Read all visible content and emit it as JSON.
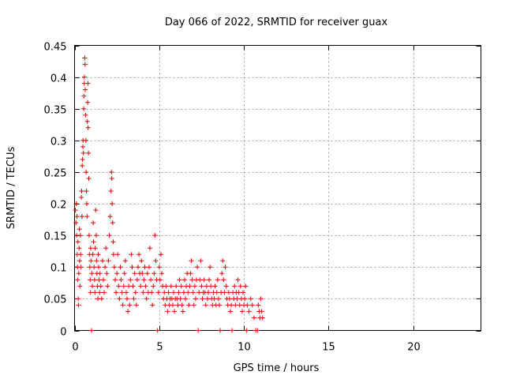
{
  "chart_data": {
    "type": "scatter",
    "title": "Day 066 of 2022, SRMTID for receiver guax",
    "xlabel": "GPS time / hours",
    "ylabel": "SRMTID / TECUs",
    "xlim": [
      0,
      24
    ],
    "ylim": [
      0,
      0.45
    ],
    "xticks": [
      0,
      5,
      10,
      15,
      20
    ],
    "xtick_labels": [
      "0",
      "5",
      "10",
      "15",
      "20"
    ],
    "yticks": [
      0,
      0.05,
      0.1,
      0.15,
      0.2,
      0.25,
      0.3,
      0.35,
      0.4,
      0.45
    ],
    "ytick_labels": [
      "0",
      "0.05",
      "0.1",
      "0.15",
      "0.2",
      "0.25",
      "0.3",
      "0.35",
      "0.4",
      "0.45"
    ],
    "grid": true,
    "marker": "+",
    "color": "#e00000",
    "series": [
      {
        "name": "SRMTID",
        "points": [
          [
            0.05,
            0.19
          ],
          [
            0.08,
            0.17
          ],
          [
            0.1,
            0.2
          ],
          [
            0.12,
            0.15
          ],
          [
            0.14,
            0.18
          ],
          [
            0.15,
            0.12
          ],
          [
            0.17,
            0.1
          ],
          [
            0.18,
            0.08
          ],
          [
            0.2,
            0.14
          ],
          [
            0.22,
            0.05
          ],
          [
            0.23,
            0.04
          ],
          [
            0.25,
            0.09
          ],
          [
            0.27,
            0.13
          ],
          [
            0.29,
            0.16
          ],
          [
            0.3,
            0.11
          ],
          [
            0.32,
            0.07
          ],
          [
            0.34,
            0.15
          ],
          [
            0.36,
            0.12
          ],
          [
            0.38,
            0.1
          ],
          [
            0.4,
            0.21
          ],
          [
            0.42,
            0.22
          ],
          [
            0.44,
            0.18
          ],
          [
            0.45,
            0.26
          ],
          [
            0.47,
            0.27
          ],
          [
            0.49,
            0.29
          ],
          [
            0.5,
            0.3
          ],
          [
            0.52,
            0.28
          ],
          [
            0.54,
            0.35
          ],
          [
            0.55,
            0.37
          ],
          [
            0.57,
            0.39
          ],
          [
            0.58,
            0.4
          ],
          [
            0.6,
            0.43
          ],
          [
            0.62,
            0.42
          ],
          [
            0.63,
            0.38
          ],
          [
            0.65,
            0.34
          ],
          [
            0.67,
            0.3
          ],
          [
            0.68,
            0.25
          ],
          [
            0.7,
            0.22
          ],
          [
            0.72,
            0.2
          ],
          [
            0.74,
            0.18
          ],
          [
            0.75,
            0.33
          ],
          [
            0.77,
            0.36
          ],
          [
            0.79,
            0.39
          ],
          [
            0.8,
            0.32
          ],
          [
            0.82,
            0.28
          ],
          [
            0.84,
            0.24
          ],
          [
            0.86,
            0.15
          ],
          [
            0.88,
            0.12
          ],
          [
            0.9,
            0.1
          ],
          [
            0.92,
            0.08
          ],
          [
            0.94,
            0.06
          ],
          [
            0.95,
            0.13
          ],
          [
            0.97,
            0.11
          ],
          [
            1.0,
            0.0
          ],
          [
            1.02,
            0.09
          ],
          [
            1.05,
            0.07
          ],
          [
            1.08,
            0.12
          ],
          [
            1.1,
            0.17
          ],
          [
            1.12,
            0.14
          ],
          [
            1.15,
            0.1
          ],
          [
            1.18,
            0.08
          ],
          [
            1.2,
            0.06
          ],
          [
            1.22,
            0.13
          ],
          [
            1.25,
            0.19
          ],
          [
            1.28,
            0.15
          ],
          [
            1.3,
            0.11
          ],
          [
            1.32,
            0.09
          ],
          [
            1.35,
            0.07
          ],
          [
            1.38,
            0.05
          ],
          [
            1.4,
            0.12
          ],
          [
            1.42,
            0.1
          ],
          [
            1.45,
            0.08
          ],
          [
            1.48,
            0.06
          ],
          [
            1.5,
            0.09
          ],
          [
            1.55,
            0.07
          ],
          [
            1.6,
            0.05
          ],
          [
            1.65,
            0.11
          ],
          [
            1.7,
            0.08
          ],
          [
            1.75,
            0.06
          ],
          [
            1.8,
            0.1
          ],
          [
            1.85,
            0.13
          ],
          [
            1.9,
            0.09
          ],
          [
            1.95,
            0.07
          ],
          [
            2.0,
            0.11
          ],
          [
            2.05,
            0.15
          ],
          [
            2.1,
            0.18
          ],
          [
            2.15,
            0.22
          ],
          [
            2.18,
            0.25
          ],
          [
            2.2,
            0.24
          ],
          [
            2.22,
            0.2
          ],
          [
            2.25,
            0.17
          ],
          [
            2.28,
            0.14
          ],
          [
            2.3,
            0.12
          ],
          [
            2.35,
            0.1
          ],
          [
            2.4,
            0.08
          ],
          [
            2.45,
            0.06
          ],
          [
            2.5,
            0.09
          ],
          [
            2.55,
            0.12
          ],
          [
            2.6,
            0.07
          ],
          [
            2.65,
            0.05
          ],
          [
            2.7,
            0.1
          ],
          [
            2.75,
            0.08
          ],
          [
            2.8,
            0.06
          ],
          [
            2.85,
            0.04
          ],
          [
            2.9,
            0.07
          ],
          [
            2.95,
            0.09
          ],
          [
            3.0,
            0.11
          ],
          [
            3.05,
            0.06
          ],
          [
            3.1,
            0.05
          ],
          [
            3.15,
            0.03
          ],
          [
            3.2,
            0.07
          ],
          [
            3.25,
            0.04
          ],
          [
            3.3,
            0.08
          ],
          [
            3.35,
            0.12
          ],
          [
            3.4,
            0.1
          ],
          [
            3.45,
            0.07
          ],
          [
            3.5,
            0.05
          ],
          [
            3.55,
            0.09
          ],
          [
            3.6,
            0.06
          ],
          [
            3.65,
            0.04
          ],
          [
            3.7,
            0.08
          ],
          [
            3.75,
            0.1
          ],
          [
            3.8,
            0.12
          ],
          [
            3.85,
            0.09
          ],
          [
            3.9,
            0.07
          ],
          [
            3.95,
            0.11
          ],
          [
            4.0,
            0.09
          ],
          [
            4.05,
            0.06
          ],
          [
            4.1,
            0.08
          ],
          [
            4.15,
            0.1
          ],
          [
            4.2,
            0.07
          ],
          [
            4.25,
            0.05
          ],
          [
            4.3,
            0.09
          ],
          [
            4.35,
            0.06
          ],
          [
            4.4,
            0.1
          ],
          [
            4.45,
            0.13
          ],
          [
            4.5,
            0.08
          ],
          [
            4.55,
            0.06
          ],
          [
            4.6,
            0.04
          ],
          [
            4.65,
            0.07
          ],
          [
            4.7,
            0.09
          ],
          [
            4.75,
            0.15
          ],
          [
            4.8,
            0.11
          ],
          [
            4.85,
            0.08
          ],
          [
            4.9,
            0.0
          ],
          [
            4.95,
            0.06
          ],
          [
            5.0,
            0.1
          ],
          [
            5.05,
            0.08
          ],
          [
            5.1,
            0.12
          ],
          [
            5.15,
            0.09
          ],
          [
            5.2,
            0.07
          ],
          [
            5.25,
            0.05
          ],
          [
            5.3,
            0.06
          ],
          [
            5.35,
            0.04
          ],
          [
            5.4,
            0.07
          ],
          [
            5.45,
            0.05
          ],
          [
            5.5,
            0.03
          ],
          [
            5.55,
            0.06
          ],
          [
            5.6,
            0.04
          ],
          [
            5.65,
            0.05
          ],
          [
            5.7,
            0.07
          ],
          [
            5.75,
            0.05
          ],
          [
            5.8,
            0.04
          ],
          [
            5.85,
            0.06
          ],
          [
            5.9,
            0.03
          ],
          [
            5.95,
            0.05
          ],
          [
            6.0,
            0.07
          ],
          [
            6.05,
            0.05
          ],
          [
            6.1,
            0.04
          ],
          [
            6.15,
            0.06
          ],
          [
            6.2,
            0.08
          ],
          [
            6.25,
            0.05
          ],
          [
            6.3,
            0.07
          ],
          [
            6.35,
            0.04
          ],
          [
            6.4,
            0.03
          ],
          [
            6.45,
            0.06
          ],
          [
            6.5,
            0.08
          ],
          [
            6.55,
            0.05
          ],
          [
            6.6,
            0.07
          ],
          [
            6.65,
            0.09
          ],
          [
            6.7,
            0.06
          ],
          [
            6.75,
            0.04
          ],
          [
            6.8,
            0.07
          ],
          [
            6.85,
            0.09
          ],
          [
            6.9,
            0.11
          ],
          [
            6.95,
            0.08
          ],
          [
            7.0,
            0.06
          ],
          [
            7.05,
            0.04
          ],
          [
            7.1,
            0.07
          ],
          [
            7.15,
            0.05
          ],
          [
            7.2,
            0.08
          ],
          [
            7.25,
            0.1
          ],
          [
            7.3,
            0.0
          ],
          [
            7.35,
            0.06
          ],
          [
            7.4,
            0.08
          ],
          [
            7.45,
            0.11
          ],
          [
            7.5,
            0.07
          ],
          [
            7.55,
            0.05
          ],
          [
            7.6,
            0.06
          ],
          [
            7.65,
            0.08
          ],
          [
            7.7,
            0.06
          ],
          [
            7.75,
            0.04
          ],
          [
            7.8,
            0.07
          ],
          [
            7.85,
            0.05
          ],
          [
            7.9,
            0.06
          ],
          [
            7.95,
            0.08
          ],
          [
            8.0,
            0.1
          ],
          [
            8.05,
            0.07
          ],
          [
            8.1,
            0.05
          ],
          [
            8.15,
            0.04
          ],
          [
            8.2,
            0.06
          ],
          [
            8.25,
            0.05
          ],
          [
            8.3,
            0.07
          ],
          [
            8.35,
            0.04
          ],
          [
            8.4,
            0.06
          ],
          [
            8.45,
            0.08
          ],
          [
            8.5,
            0.05
          ],
          [
            8.55,
            0.04
          ],
          [
            8.6,
            0.0
          ],
          [
            8.65,
            0.06
          ],
          [
            8.7,
            0.09
          ],
          [
            8.75,
            0.11
          ],
          [
            8.8,
            0.08
          ],
          [
            8.85,
            0.06
          ],
          [
            8.9,
            0.1
          ],
          [
            8.95,
            0.07
          ],
          [
            9.0,
            0.05
          ],
          [
            9.05,
            0.04
          ],
          [
            9.1,
            0.06
          ],
          [
            9.15,
            0.05
          ],
          [
            9.2,
            0.03
          ],
          [
            9.25,
            0.04
          ],
          [
            9.3,
            0.0
          ],
          [
            9.35,
            0.06
          ],
          [
            9.4,
            0.05
          ],
          [
            9.45,
            0.07
          ],
          [
            9.5,
            0.04
          ],
          [
            9.55,
            0.06
          ],
          [
            9.6,
            0.05
          ],
          [
            9.65,
            0.08
          ],
          [
            9.7,
            0.06
          ],
          [
            9.75,
            0.04
          ],
          [
            9.8,
            0.07
          ],
          [
            9.85,
            0.05
          ],
          [
            9.9,
            0.03
          ],
          [
            9.95,
            0.06
          ],
          [
            10.0,
            0.04
          ],
          [
            10.05,
            0.05
          ],
          [
            10.1,
            0.07
          ],
          [
            10.15,
            0.0
          ],
          [
            10.2,
            0.04
          ],
          [
            10.3,
            0.03
          ],
          [
            10.4,
            0.05
          ],
          [
            10.5,
            0.04
          ],
          [
            10.6,
            0.02
          ],
          [
            10.7,
            0.0
          ],
          [
            10.8,
            0.0
          ],
          [
            10.85,
            0.04
          ],
          [
            10.9,
            0.03
          ],
          [
            10.95,
            0.02
          ],
          [
            11.0,
            0.05
          ],
          [
            11.05,
            0.03
          ],
          [
            11.1,
            0.02
          ]
        ]
      }
    ]
  }
}
